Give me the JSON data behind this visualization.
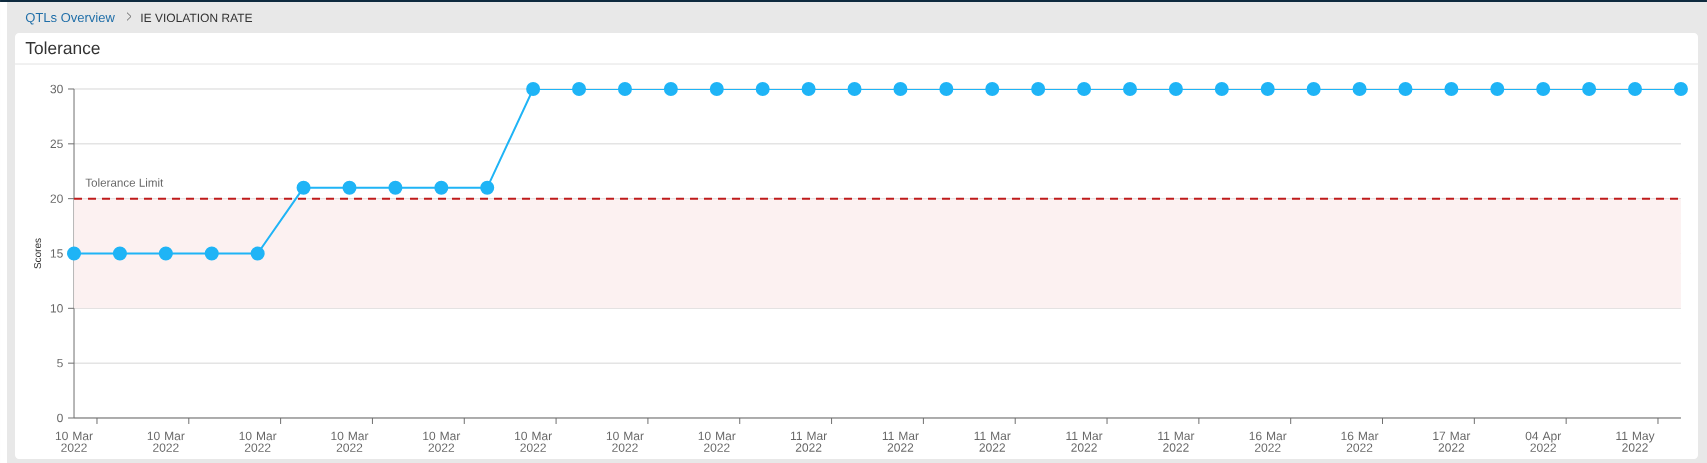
{
  "chart_data": {
    "type": "line",
    "title": "Tolerance",
    "annotations": [
      "QTLs Overview",
      "IE VIOLATION RATE"
    ],
    "ylabel": "Scores",
    "categories": [
      "10 Mar 2022",
      null,
      "10 Mar 2022",
      null,
      "10 Mar 2022",
      null,
      "10 Mar 2022",
      null,
      "10 Mar 2022",
      null,
      "10 Mar 2022",
      null,
      "10 Mar 2022",
      null,
      "10 Mar 2022",
      null,
      "11 Mar 2022",
      null,
      "11 Mar 2022",
      null,
      "11 Mar 2022",
      null,
      "11 Mar 2022",
      null,
      "11 Mar 2022",
      null,
      "16 Mar 2022",
      null,
      "16 Mar 2022",
      null,
      "17 Mar 2022",
      null,
      "04 Apr 2022",
      null,
      "11 May 2022",
      null
    ],
    "series": [
      {
        "color": "#1fb4f6",
        "values": [
          15,
          15,
          15,
          15,
          15,
          21,
          21,
          21,
          21,
          21,
          30,
          30,
          30,
          30,
          30,
          30,
          30,
          30,
          30,
          30,
          30,
          30,
          30,
          30,
          30,
          30,
          30,
          30,
          30,
          30,
          30,
          30,
          30,
          30,
          30,
          30
        ]
      }
    ],
    "ylim": [
      0,
      30
    ],
    "yticks": [
      0,
      5,
      10,
      15,
      20,
      25,
      30
    ],
    "grid": "y",
    "marker": "circle",
    "line_style": "solid",
    "ref_lines": [
      {
        "axis": "y",
        "value": 20,
        "label": "Tolerance Limit",
        "color": "#bf1b1b",
        "line_style": "dashed"
      }
    ],
    "bands": [
      {
        "axis": "y",
        "from": 10,
        "to": 20,
        "color": "#fcf1f1"
      }
    ]
  }
}
